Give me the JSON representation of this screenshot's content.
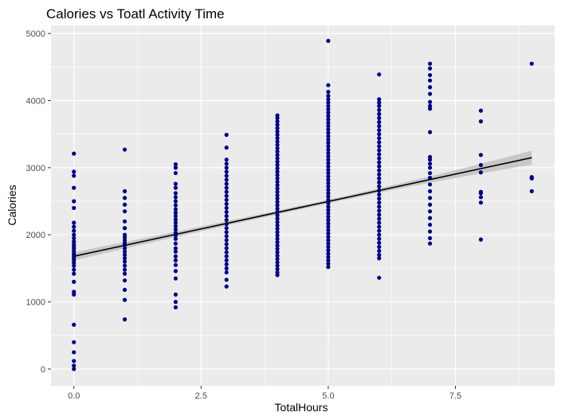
{
  "chart_data": {
    "type": "scatter",
    "title": "Calories vs Toatl Activity Time",
    "xlabel": "TotalHours",
    "ylabel": "Calories",
    "xlim": [
      -0.45,
      9.45
    ],
    "ylim": [
      -250,
      5120
    ],
    "xticks": [
      0,
      2.5,
      5,
      7.5
    ],
    "xtick_labels": [
      "0.0",
      "2.5",
      "5.0",
      "7.5"
    ],
    "yticks": [
      0,
      1000,
      2000,
      3000,
      4000,
      5000
    ],
    "ytick_labels": [
      "0",
      "1000",
      "2000",
      "3000",
      "4000",
      "5000"
    ],
    "grid": true,
    "legend": "none",
    "point_color": "#00008B",
    "panel_color": "#EBEBEB",
    "series": [
      {
        "points": [
          [
            0,
            0
          ],
          [
            0,
            50
          ],
          [
            0,
            120
          ],
          [
            0,
            250
          ],
          [
            0,
            400
          ],
          [
            0,
            660
          ],
          [
            0,
            1110
          ],
          [
            0,
            1150
          ],
          [
            0,
            1300
          ],
          [
            0,
            1420
          ],
          [
            0,
            1480
          ],
          [
            0,
            1540
          ],
          [
            0,
            1580
          ],
          [
            0,
            1620
          ],
          [
            0,
            1650
          ],
          [
            0,
            1680
          ],
          [
            0,
            1700
          ],
          [
            0,
            1720
          ],
          [
            0,
            1760
          ],
          [
            0,
            1800
          ],
          [
            0,
            1830
          ],
          [
            0,
            1860
          ],
          [
            0,
            1900
          ],
          [
            0,
            1950
          ],
          [
            0,
            2000
          ],
          [
            0,
            2060
          ],
          [
            0,
            2120
          ],
          [
            0,
            2180
          ],
          [
            0,
            2400
          ],
          [
            0,
            2500
          ],
          [
            0,
            2700
          ],
          [
            0,
            2880
          ],
          [
            0,
            2940
          ],
          [
            0,
            3210
          ],
          [
            1,
            740
          ],
          [
            1,
            1030
          ],
          [
            1,
            1180
          ],
          [
            1,
            1320
          ],
          [
            1,
            1420
          ],
          [
            1,
            1480
          ],
          [
            1,
            1540
          ],
          [
            1,
            1600
          ],
          [
            1,
            1650
          ],
          [
            1,
            1700
          ],
          [
            1,
            1750
          ],
          [
            1,
            1800
          ],
          [
            1,
            1850
          ],
          [
            1,
            1880
          ],
          [
            1,
            1920
          ],
          [
            1,
            1960
          ],
          [
            1,
            2000
          ],
          [
            1,
            2100
          ],
          [
            1,
            2200
          ],
          [
            1,
            2350
          ],
          [
            1,
            2450
          ],
          [
            1,
            2550
          ],
          [
            1,
            2650
          ],
          [
            1,
            3270
          ],
          [
            2,
            920
          ],
          [
            2,
            1000
          ],
          [
            2,
            1110
          ],
          [
            2,
            1350
          ],
          [
            2,
            1460
          ],
          [
            2,
            1550
          ],
          [
            2,
            1620
          ],
          [
            2,
            1680
          ],
          [
            2,
            1750
          ],
          [
            2,
            1800
          ],
          [
            2,
            1870
          ],
          [
            2,
            1940
          ],
          [
            2,
            1990
          ],
          [
            2,
            2030
          ],
          [
            2,
            2080
          ],
          [
            2,
            2130
          ],
          [
            2,
            2180
          ],
          [
            2,
            2230
          ],
          [
            2,
            2280
          ],
          [
            2,
            2330
          ],
          [
            2,
            2380
          ],
          [
            2,
            2440
          ],
          [
            2,
            2500
          ],
          [
            2,
            2560
          ],
          [
            2,
            2620
          ],
          [
            2,
            2700
          ],
          [
            2,
            2760
          ],
          [
            2,
            2920
          ],
          [
            2,
            3000
          ],
          [
            2,
            3050
          ],
          [
            3,
            1230
          ],
          [
            3,
            1330
          ],
          [
            3,
            1440
          ],
          [
            3,
            1500
          ],
          [
            3,
            1560
          ],
          [
            3,
            1620
          ],
          [
            3,
            1680
          ],
          [
            3,
            1740
          ],
          [
            3,
            1800
          ],
          [
            3,
            1860
          ],
          [
            3,
            1920
          ],
          [
            3,
            1980
          ],
          [
            3,
            2040
          ],
          [
            3,
            2100
          ],
          [
            3,
            2160
          ],
          [
            3,
            2220
          ],
          [
            3,
            2280
          ],
          [
            3,
            2340
          ],
          [
            3,
            2400
          ],
          [
            3,
            2460
          ],
          [
            3,
            2520
          ],
          [
            3,
            2580
          ],
          [
            3,
            2640
          ],
          [
            3,
            2700
          ],
          [
            3,
            2760
          ],
          [
            3,
            2820
          ],
          [
            3,
            2880
          ],
          [
            3,
            2940
          ],
          [
            3,
            3000
          ],
          [
            3,
            3060
          ],
          [
            3,
            3120
          ],
          [
            3,
            3300
          ],
          [
            3,
            3490
          ],
          [
            4,
            1400
          ],
          [
            4,
            1440
          ],
          [
            4,
            1490
          ],
          [
            4,
            1540
          ],
          [
            4,
            1590
          ],
          [
            4,
            1640
          ],
          [
            4,
            1690
          ],
          [
            4,
            1740
          ],
          [
            4,
            1790
          ],
          [
            4,
            1840
          ],
          [
            4,
            1890
          ],
          [
            4,
            1940
          ],
          [
            4,
            1990
          ],
          [
            4,
            2040
          ],
          [
            4,
            2090
          ],
          [
            4,
            2140
          ],
          [
            4,
            2190
          ],
          [
            4,
            2240
          ],
          [
            4,
            2290
          ],
          [
            4,
            2340
          ],
          [
            4,
            2390
          ],
          [
            4,
            2440
          ],
          [
            4,
            2490
          ],
          [
            4,
            2540
          ],
          [
            4,
            2590
          ],
          [
            4,
            2640
          ],
          [
            4,
            2690
          ],
          [
            4,
            2740
          ],
          [
            4,
            2790
          ],
          [
            4,
            2840
          ],
          [
            4,
            2890
          ],
          [
            4,
            2940
          ],
          [
            4,
            2990
          ],
          [
            4,
            3040
          ],
          [
            4,
            3090
          ],
          [
            4,
            3140
          ],
          [
            4,
            3190
          ],
          [
            4,
            3240
          ],
          [
            4,
            3290
          ],
          [
            4,
            3340
          ],
          [
            4,
            3390
          ],
          [
            4,
            3440
          ],
          [
            4,
            3490
          ],
          [
            4,
            3540
          ],
          [
            4,
            3590
          ],
          [
            4,
            3640
          ],
          [
            4,
            3690
          ],
          [
            4,
            3740
          ],
          [
            4,
            3780
          ],
          [
            5,
            1520
          ],
          [
            5,
            1570
          ],
          [
            5,
            1620
          ],
          [
            5,
            1670
          ],
          [
            5,
            1720
          ],
          [
            5,
            1770
          ],
          [
            5,
            1820
          ],
          [
            5,
            1870
          ],
          [
            5,
            1920
          ],
          [
            5,
            1970
          ],
          [
            5,
            2020
          ],
          [
            5,
            2070
          ],
          [
            5,
            2120
          ],
          [
            5,
            2170
          ],
          [
            5,
            2220
          ],
          [
            5,
            2270
          ],
          [
            5,
            2320
          ],
          [
            5,
            2370
          ],
          [
            5,
            2420
          ],
          [
            5,
            2470
          ],
          [
            5,
            2520
          ],
          [
            5,
            2570
          ],
          [
            5,
            2620
          ],
          [
            5,
            2670
          ],
          [
            5,
            2720
          ],
          [
            5,
            2770
          ],
          [
            5,
            2820
          ],
          [
            5,
            2870
          ],
          [
            5,
            2920
          ],
          [
            5,
            2970
          ],
          [
            5,
            3020
          ],
          [
            5,
            3070
          ],
          [
            5,
            3120
          ],
          [
            5,
            3170
          ],
          [
            5,
            3220
          ],
          [
            5,
            3270
          ],
          [
            5,
            3320
          ],
          [
            5,
            3370
          ],
          [
            5,
            3420
          ],
          [
            5,
            3470
          ],
          [
            5,
            3520
          ],
          [
            5,
            3570
          ],
          [
            5,
            3620
          ],
          [
            5,
            3670
          ],
          [
            5,
            3720
          ],
          [
            5,
            3770
          ],
          [
            5,
            3820
          ],
          [
            5,
            3870
          ],
          [
            5,
            3920
          ],
          [
            5,
            3970
          ],
          [
            5,
            4020
          ],
          [
            5,
            4070
          ],
          [
            5,
            4130
          ],
          [
            5,
            4230
          ],
          [
            5,
            4890
          ],
          [
            6,
            1360
          ],
          [
            6,
            1650
          ],
          [
            6,
            1700
          ],
          [
            6,
            1760
          ],
          [
            6,
            1820
          ],
          [
            6,
            1880
          ],
          [
            6,
            1940
          ],
          [
            6,
            2000
          ],
          [
            6,
            2060
          ],
          [
            6,
            2120
          ],
          [
            6,
            2180
          ],
          [
            6,
            2240
          ],
          [
            6,
            2300
          ],
          [
            6,
            2360
          ],
          [
            6,
            2420
          ],
          [
            6,
            2480
          ],
          [
            6,
            2540
          ],
          [
            6,
            2600
          ],
          [
            6,
            2660
          ],
          [
            6,
            2720
          ],
          [
            6,
            2780
          ],
          [
            6,
            2840
          ],
          [
            6,
            2900
          ],
          [
            6,
            2960
          ],
          [
            6,
            3020
          ],
          [
            6,
            3080
          ],
          [
            6,
            3140
          ],
          [
            6,
            3200
          ],
          [
            6,
            3260
          ],
          [
            6,
            3320
          ],
          [
            6,
            3380
          ],
          [
            6,
            3440
          ],
          [
            6,
            3500
          ],
          [
            6,
            3560
          ],
          [
            6,
            3620
          ],
          [
            6,
            3680
          ],
          [
            6,
            3740
          ],
          [
            6,
            3800
          ],
          [
            6,
            3860
          ],
          [
            6,
            3920
          ],
          [
            6,
            3970
          ],
          [
            6,
            4020
          ],
          [
            6,
            4390
          ],
          [
            7,
            1870
          ],
          [
            7,
            1950
          ],
          [
            7,
            2050
          ],
          [
            7,
            2150
          ],
          [
            7,
            2250
          ],
          [
            7,
            2350
          ],
          [
            7,
            2450
          ],
          [
            7,
            2550
          ],
          [
            7,
            2650
          ],
          [
            7,
            2750
          ],
          [
            7,
            2850
          ],
          [
            7,
            2920
          ],
          [
            7,
            3000
          ],
          [
            7,
            3060
          ],
          [
            7,
            3120
          ],
          [
            7,
            3160
          ],
          [
            7,
            3530
          ],
          [
            7,
            3880
          ],
          [
            7,
            3920
          ],
          [
            7,
            3980
          ],
          [
            7,
            4100
          ],
          [
            7,
            4200
          ],
          [
            7,
            4300
          ],
          [
            7,
            4380
          ],
          [
            7,
            4480
          ],
          [
            7,
            4550
          ],
          [
            8,
            1930
          ],
          [
            8,
            2480
          ],
          [
            8,
            2560
          ],
          [
            8,
            2620
          ],
          [
            8,
            2640
          ],
          [
            8,
            2930
          ],
          [
            8,
            3040
          ],
          [
            8,
            3190
          ],
          [
            8,
            3690
          ],
          [
            8,
            3850
          ],
          [
            9,
            2650
          ],
          [
            9,
            2840
          ],
          [
            9,
            2860
          ],
          [
            9,
            4550
          ]
        ]
      }
    ],
    "fit": {
      "type": "linear",
      "x_range": [
        0,
        9
      ],
      "y_start": 1680,
      "y_end": 3150,
      "se_halfwidth_start": 60,
      "se_halfwidth_mid": 28,
      "se_halfwidth_end": 105,
      "line_color": "#000000",
      "band_color": "#B3B3B3"
    }
  }
}
